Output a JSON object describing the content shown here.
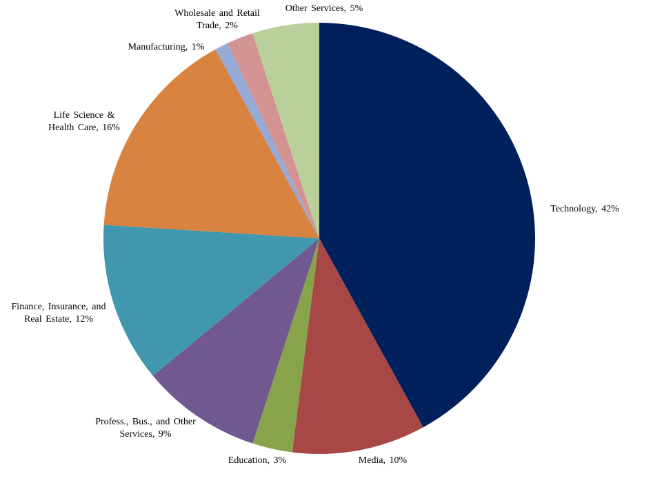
{
  "chart_data": {
    "type": "pie",
    "values": [
      42,
      10,
      3,
      9,
      12,
      16,
      1,
      2,
      5
    ],
    "value_labels": [
      "Technology, 42%",
      "Media, 10%",
      "Education, 3%",
      "Profess., Bus., and Other Services, 9%",
      "Finance, Insurance, and Real Estate, 12%",
      "Life Science & Health Care, 16%",
      "Manufacturing, 1%",
      "Wholesale and Retail Trade, 2%",
      "Other Services, 5%"
    ],
    "colors": [
      "#00205b",
      "#a84846",
      "#88a44b",
      "#71588f",
      "#4197ae",
      "#d98340",
      "#95aad6",
      "#d49393",
      "#b9d09a"
    ]
  }
}
